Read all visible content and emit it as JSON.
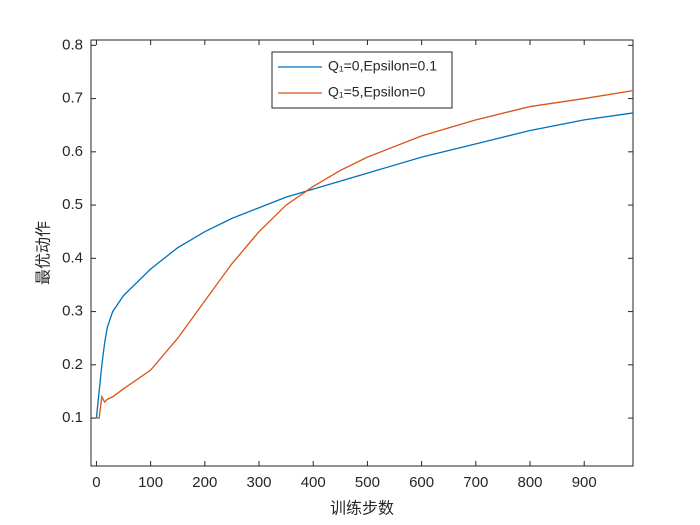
{
  "chart_data": {
    "type": "line",
    "x_label": "训练步数",
    "y_label": "最优动作",
    "x": [
      0,
      5,
      10,
      15,
      20,
      30,
      50,
      100,
      150,
      200,
      250,
      300,
      350,
      400,
      450,
      500,
      600,
      700,
      800,
      900,
      990
    ],
    "series": [
      {
        "name": "Q₁=0,Epsilon=0.1",
        "color": "#0072bd",
        "values": [
          0.1,
          0.15,
          0.2,
          0.24,
          0.27,
          0.3,
          0.33,
          0.38,
          0.42,
          0.45,
          0.475,
          0.495,
          0.515,
          0.53,
          0.545,
          0.56,
          0.59,
          0.615,
          0.64,
          0.66,
          0.673
        ]
      },
      {
        "name": "Q₁=5,Epsilon=0",
        "color": "#d95319",
        "values": [
          0.1,
          0.1,
          0.14,
          0.13,
          0.135,
          0.14,
          0.155,
          0.19,
          0.25,
          0.32,
          0.39,
          0.45,
          0.5,
          0.535,
          0.565,
          0.59,
          0.63,
          0.66,
          0.685,
          0.7,
          0.715
        ]
      }
    ],
    "xlim": [
      -10,
      990
    ],
    "ylim": [
      0.01,
      0.81
    ],
    "xticks": [
      0,
      100,
      200,
      300,
      400,
      500,
      600,
      700,
      800,
      900
    ],
    "yticks": [
      0.1,
      0.2,
      0.3,
      0.4,
      0.5,
      0.6,
      0.7,
      0.8
    ],
    "legend": "top",
    "grid": false
  }
}
